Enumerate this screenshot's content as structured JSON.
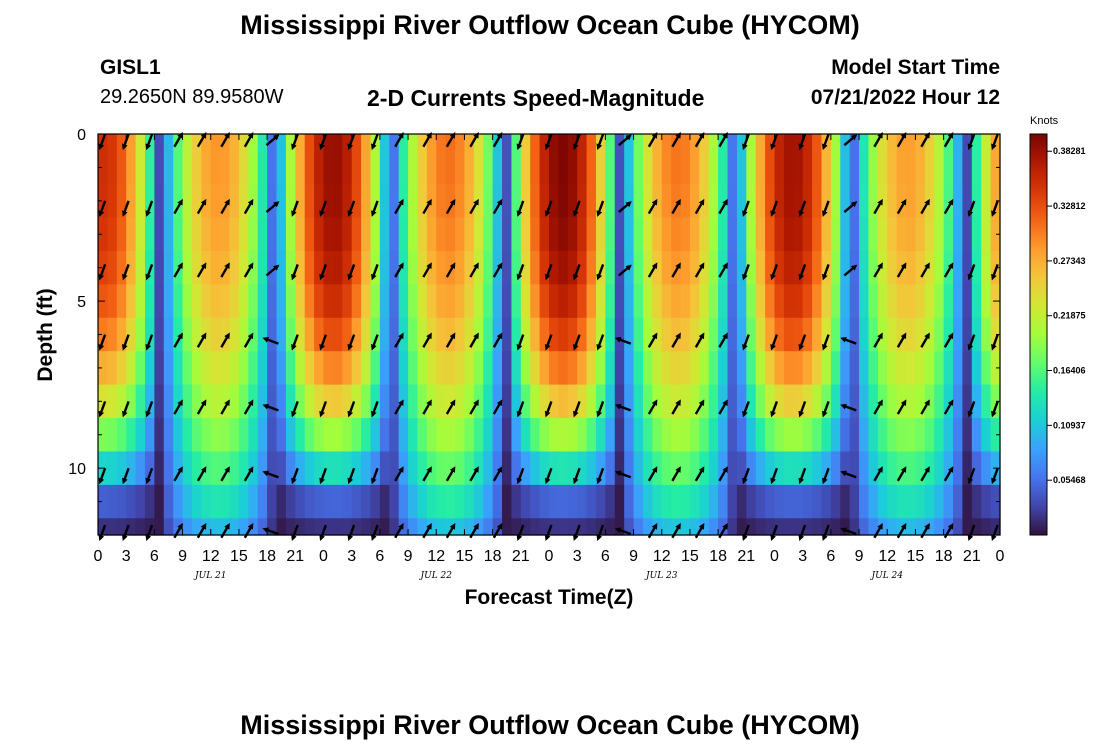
{
  "header": {
    "title": "Mississippi River Outflow Ocean Cube (HYCOM)",
    "station_id": "GISL1",
    "station_coords": "29.2650N  89.9580W",
    "subtitle": "2-D Currents Speed-Magnitude",
    "model_start_label": "Model Start Time",
    "model_start_value": "07/21/2022 Hour 12"
  },
  "footer": {
    "title": "Mississippi River Outflow Ocean Cube (HYCOM)"
  },
  "chart_data": {
    "type": "heatmap",
    "xlabel": "Forecast Time(Z)",
    "ylabel": "Depth (ft)",
    "x_ticks": [
      "0",
      "3",
      "6",
      "9",
      "12",
      "15",
      "18",
      "21",
      "0",
      "3",
      "6",
      "9",
      "12",
      "15",
      "18",
      "21",
      "0",
      "3",
      "6",
      "9",
      "12",
      "15",
      "18",
      "21",
      "0",
      "3",
      "6",
      "9",
      "12",
      "15",
      "18",
      "21",
      "0"
    ],
    "x_hours": [
      0,
      96
    ],
    "date_labels": [
      {
        "label": "JUL 21",
        "hour": 12
      },
      {
        "label": "JUL 22",
        "hour": 36
      },
      {
        "label": "JUL 23",
        "hour": 60
      },
      {
        "label": "JUL 24",
        "hour": 84
      }
    ],
    "y_ticks": [
      "0",
      "5",
      "10"
    ],
    "ylim": [
      0,
      12
    ],
    "y_inverted": true,
    "colorbar": {
      "unit": "Knots",
      "labels": [
        "0.38281",
        "0.32812",
        "0.27343",
        "0.21875",
        "0.16406",
        "0.10937",
        "0.05468"
      ],
      "range": [
        0.0,
        0.4
      ],
      "colors": [
        "#30123b",
        "#4145ab",
        "#4675ed",
        "#39a2fc",
        "#1bcfd4",
        "#24eca6",
        "#61fc6c",
        "#a4fc3b",
        "#d1e834",
        "#f3c63a",
        "#fe9b2d",
        "#f36315",
        "#d93806",
        "#b11901",
        "#7a0403"
      ]
    },
    "depth_levels_ft": [
      0,
      1,
      2,
      3,
      4,
      5,
      6,
      7,
      8,
      9,
      10,
      11,
      12
    ],
    "arrow_depths_ft": [
      0.2,
      2.2,
      4.1,
      6.2,
      8.2,
      10.2,
      11.9
    ],
    "arrow_hours": [
      0.5,
      3,
      5.5,
      8.5,
      11,
      13.5,
      16,
      18.5,
      21,
      24,
      27,
      29.5,
      32,
      35,
      37.5,
      40,
      42.5,
      45,
      48,
      51,
      53.5,
      56,
      59,
      61.5,
      64,
      66.5,
      69,
      72,
      75,
      77.5,
      80,
      83,
      85.5,
      88,
      90.5,
      93,
      95.5
    ],
    "tidal_period_hours": 24.5,
    "max_speed_knots": 0.39
  }
}
